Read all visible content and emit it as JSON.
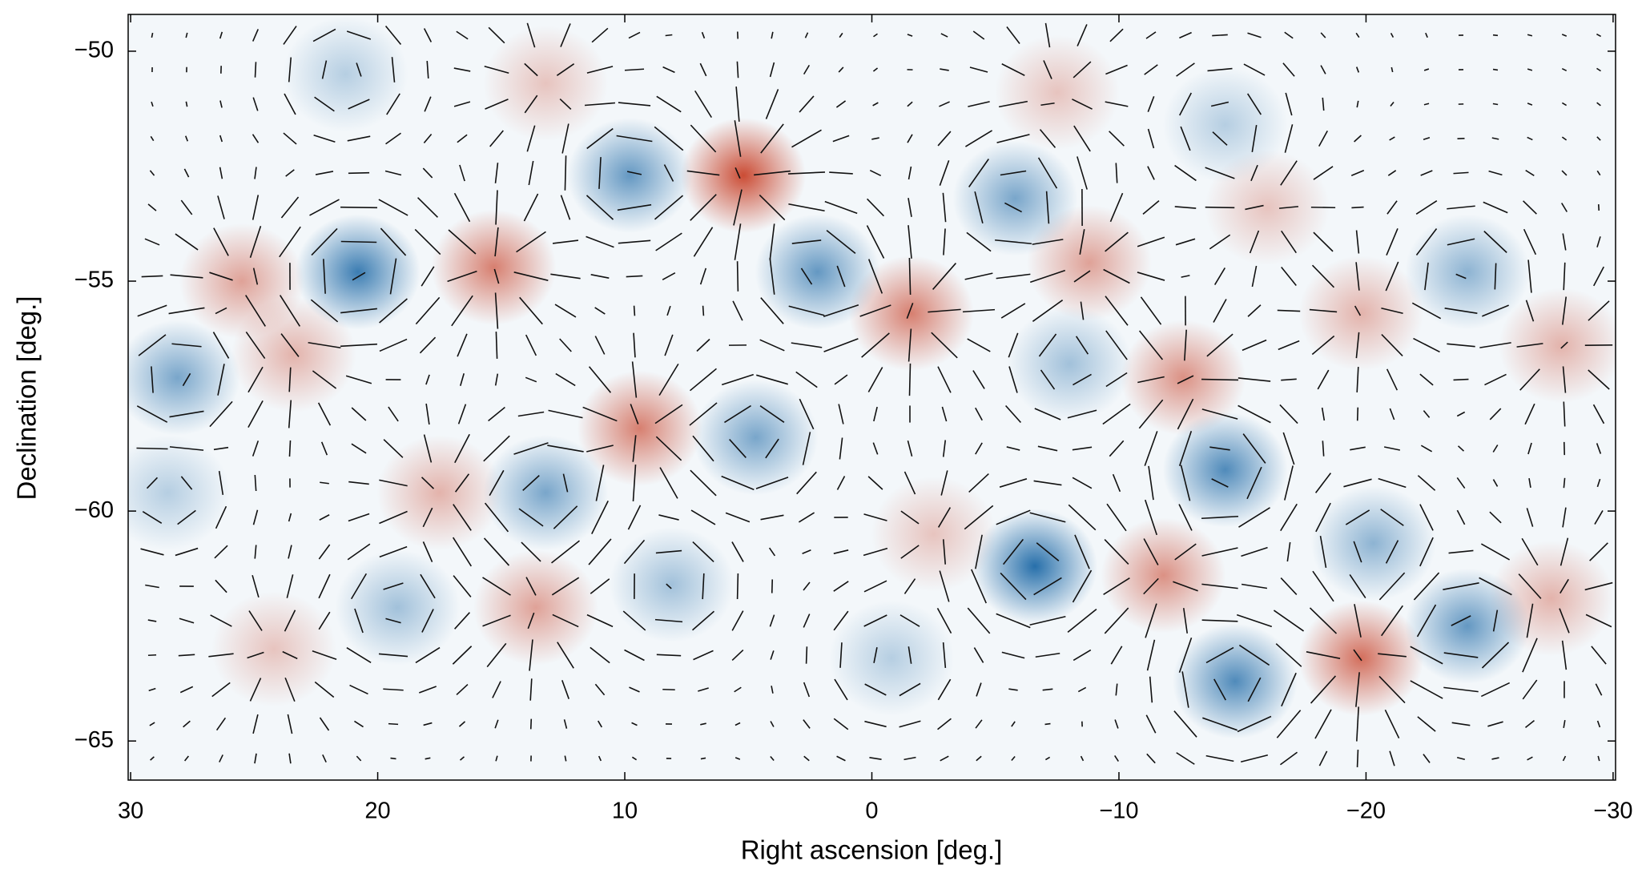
{
  "chart_data": {
    "type": "map",
    "xlabel": "Right ascension [deg.]",
    "ylabel": "Declination [deg.]",
    "xlim": [
      30.1,
      -30.1
    ],
    "ylim": [
      -65.85,
      -49.2
    ],
    "xticks": [
      {
        "value": 30,
        "label": "30"
      },
      {
        "value": 20,
        "label": "20"
      },
      {
        "value": 10,
        "label": "10"
      },
      {
        "value": 0,
        "label": "0"
      },
      {
        "value": -10,
        "label": "−10"
      },
      {
        "value": -20,
        "label": "−20"
      },
      {
        "value": -30,
        "label": "−30"
      }
    ],
    "yticks": [
      {
        "value": -50,
        "label": "−50"
      },
      {
        "value": -55,
        "label": "−55"
      },
      {
        "value": -60,
        "label": "−60"
      },
      {
        "value": -65,
        "label": "−65"
      }
    ],
    "x": [
      5.2,
      15.3,
      25.5,
      23.4,
      -1.6,
      9.4,
      -8.8,
      -12.6,
      -11.8,
      -19.8,
      13.6,
      -19.8,
      -27.9,
      -27.5,
      -7.5,
      -16.0,
      17.5,
      24.2,
      -2.5,
      13.2,
      20.8,
      28.1,
      9.8,
      2.2,
      4.7,
      13.2,
      -6.6,
      -5.8,
      -8.0,
      -14.3,
      -14.7,
      -24.1,
      -20.3,
      -24.1,
      19.2,
      8.1,
      -14.3,
      28.5,
      -0.8,
      21.3
    ],
    "y": [
      -52.7,
      -54.7,
      -55.0,
      -56.6,
      -55.7,
      -58.2,
      -54.6,
      -57.1,
      -61.4,
      -63.2,
      -62.1,
      -55.7,
      -56.4,
      -61.9,
      -50.9,
      -53.4,
      -59.6,
      -63.0,
      -60.5,
      -50.7,
      -54.8,
      -57.1,
      -52.7,
      -54.8,
      -58.4,
      -59.6,
      -61.2,
      -53.2,
      -56.8,
      -59.1,
      -63.7,
      -62.5,
      -60.7,
      -54.8,
      -62.1,
      -61.6,
      -51.6,
      -59.6,
      -63.2,
      -50.5
    ],
    "values": [
      1.0,
      0.7,
      0.5,
      0.4,
      0.7,
      0.7,
      0.5,
      0.6,
      0.6,
      0.8,
      0.5,
      0.4,
      0.4,
      0.4,
      0.3,
      0.3,
      0.4,
      0.3,
      0.3,
      0.3,
      -0.9,
      -0.6,
      -0.7,
      -0.7,
      -0.6,
      -0.6,
      -1.0,
      -0.6,
      -0.4,
      -0.8,
      -0.8,
      -0.7,
      -0.5,
      -0.5,
      -0.4,
      -0.4,
      -0.3,
      -0.3,
      -0.3,
      -0.3
    ],
    "colors": {
      "positive": "#c9432a",
      "negative": "#1c68a6",
      "background": "#f3f7fa",
      "stick": "#111111"
    }
  }
}
